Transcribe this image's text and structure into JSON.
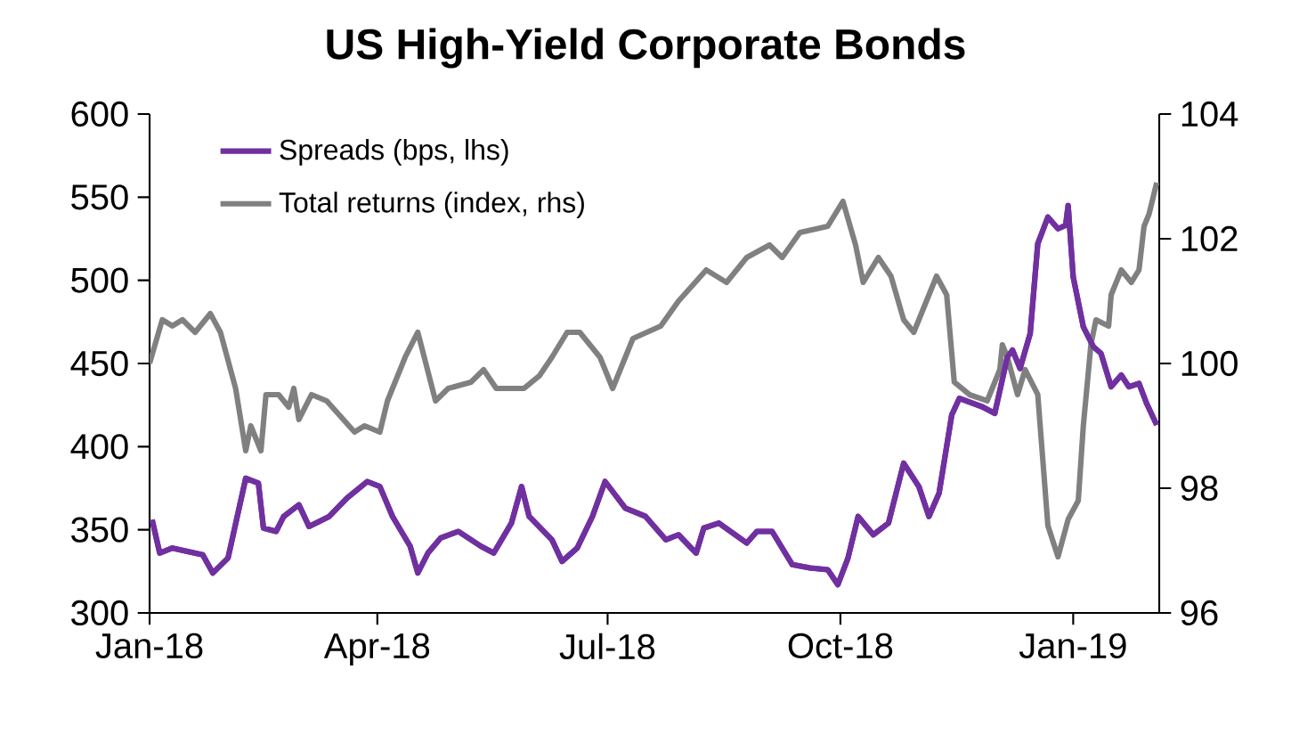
{
  "chart_data": {
    "type": "line",
    "title": "US High-Yield Corporate Bonds",
    "xlim": [
      "2018-01-01",
      "2019-02-04"
    ],
    "xticks": [
      {
        "value": "2018-01-01",
        "label": "Jan-18"
      },
      {
        "value": "2018-04-01",
        "label": "Apr-18"
      },
      {
        "value": "2018-07-01",
        "label": "Jul-18"
      },
      {
        "value": "2018-10-01",
        "label": "Oct-18"
      },
      {
        "value": "2019-01-01",
        "label": "Jan-19"
      }
    ],
    "ylim": [
      300,
      600
    ],
    "yticks": [
      300,
      350,
      400,
      450,
      500,
      550,
      600
    ],
    "y2lim": [
      96,
      104
    ],
    "y2ticks": [
      96,
      98,
      100,
      102,
      104
    ],
    "legend": "top left",
    "grid": false,
    "series": [
      {
        "name": "Spreads (bps, lhs)",
        "color": "#7030a0",
        "x": [
          "2018-01-02",
          "2018-01-05",
          "2018-01-10",
          "2018-01-22",
          "2018-01-26",
          "2018-02-01",
          "2018-02-08",
          "2018-02-13",
          "2018-02-15",
          "2018-02-20",
          "2018-02-23",
          "2018-03-01",
          "2018-03-05",
          "2018-03-13",
          "2018-03-20",
          "2018-03-28",
          "2018-04-02",
          "2018-04-07",
          "2018-04-14",
          "2018-04-17",
          "2018-04-21",
          "2018-04-26",
          "2018-05-03",
          "2018-05-12",
          "2018-05-17",
          "2018-05-24",
          "2018-05-28",
          "2018-05-31",
          "2018-06-09",
          "2018-06-13",
          "2018-06-19",
          "2018-06-25",
          "2018-06-30",
          "2018-07-08",
          "2018-07-16",
          "2018-07-24",
          "2018-07-29",
          "2018-08-05",
          "2018-08-08",
          "2018-08-14",
          "2018-08-25",
          "2018-08-29",
          "2018-09-04",
          "2018-09-12",
          "2018-09-19",
          "2018-09-26",
          "2018-09-30",
          "2018-10-04",
          "2018-10-08",
          "2018-10-14",
          "2018-10-20",
          "2018-10-26",
          "2018-11-01",
          "2018-11-05",
          "2018-11-09",
          "2018-11-14",
          "2018-11-17",
          "2018-11-26",
          "2018-12-01",
          "2018-12-06",
          "2018-12-08",
          "2018-12-11",
          "2018-12-15",
          "2018-12-18",
          "2018-12-22",
          "2018-12-26",
          "2018-12-29",
          "2018-12-30",
          "2019-01-01",
          "2019-01-05",
          "2019-01-09",
          "2019-01-12",
          "2019-01-16",
          "2019-01-20",
          "2019-01-23",
          "2019-01-27",
          "2019-01-30",
          "2019-02-03"
        ],
        "values": [
          356,
          336,
          339,
          335,
          324,
          333,
          381,
          378,
          351,
          349,
          358,
          365,
          352,
          358,
          369,
          379,
          376,
          358,
          340,
          324,
          336,
          345,
          349,
          340,
          336,
          354,
          376,
          358,
          344,
          331,
          339,
          358,
          379,
          363,
          358,
          344,
          347,
          336,
          351,
          354,
          342,
          349,
          349,
          329,
          327,
          326,
          317,
          333,
          358,
          347,
          354,
          390,
          376,
          358,
          372,
          419,
          429,
          424,
          420,
          454,
          458,
          447,
          468,
          522,
          538,
          531,
          533,
          545,
          502,
          472,
          460,
          456,
          436,
          443,
          436,
          438,
          426,
          413
        ]
      },
      {
        "name": "Total returns (index, rhs)",
        "color": "#808080",
        "axis": "y2",
        "x": [
          "2018-01-01",
          "2018-01-06",
          "2018-01-10",
          "2018-01-14",
          "2018-01-19",
          "2018-01-25",
          "2018-01-29",
          "2018-02-04",
          "2018-02-08",
          "2018-02-10",
          "2018-02-14",
          "2018-02-16",
          "2018-02-21",
          "2018-02-25",
          "2018-02-27",
          "2018-03-01",
          "2018-03-06",
          "2018-03-12",
          "2018-03-23",
          "2018-03-27",
          "2018-04-02",
          "2018-04-05",
          "2018-04-12",
          "2018-04-17",
          "2018-04-24",
          "2018-04-29",
          "2018-05-08",
          "2018-05-13",
          "2018-05-18",
          "2018-05-29",
          "2018-06-04",
          "2018-06-09",
          "2018-06-15",
          "2018-06-20",
          "2018-06-28",
          "2018-07-03",
          "2018-07-11",
          "2018-07-22",
          "2018-07-29",
          "2018-08-09",
          "2018-08-17",
          "2018-08-25",
          "2018-09-03",
          "2018-09-08",
          "2018-09-15",
          "2018-09-26",
          "2018-10-02",
          "2018-10-07",
          "2018-10-10",
          "2018-10-16",
          "2018-10-21",
          "2018-10-26",
          "2018-10-30",
          "2018-11-02",
          "2018-11-08",
          "2018-11-12",
          "2018-11-15",
          "2018-11-21",
          "2018-11-28",
          "2018-12-03",
          "2018-12-04",
          "2018-12-06",
          "2018-12-10",
          "2018-12-13",
          "2018-12-18",
          "2018-12-22",
          "2018-12-26",
          "2018-12-30",
          "2019-01-03",
          "2019-01-05",
          "2019-01-08",
          "2019-01-10",
          "2019-01-15",
          "2019-01-16",
          "2019-01-20",
          "2019-01-24",
          "2019-01-27",
          "2019-01-29",
          "2019-01-31",
          "2019-02-03"
        ],
        "values": [
          100.0,
          100.7,
          100.6,
          100.7,
          100.5,
          100.8,
          100.5,
          99.6,
          98.6,
          99.0,
          98.6,
          99.5,
          99.5,
          99.3,
          99.6,
          99.1,
          99.5,
          99.4,
          98.9,
          99.0,
          98.9,
          99.4,
          100.1,
          100.5,
          99.4,
          99.6,
          99.7,
          99.9,
          99.6,
          99.6,
          99.8,
          100.1,
          100.5,
          100.5,
          100.1,
          99.6,
          100.4,
          100.6,
          101.0,
          101.5,
          101.3,
          101.7,
          101.9,
          101.7,
          102.1,
          102.2,
          102.6,
          101.9,
          101.3,
          101.7,
          101.4,
          100.7,
          100.5,
          100.8,
          101.4,
          101.1,
          99.7,
          99.5,
          99.4,
          99.9,
          100.3,
          100.1,
          99.5,
          99.9,
          99.5,
          97.4,
          96.9,
          97.5,
          97.8,
          99.0,
          100.3,
          100.7,
          100.6,
          101.1,
          101.5,
          101.3,
          101.5,
          102.2,
          102.4,
          102.9
        ]
      }
    ]
  }
}
